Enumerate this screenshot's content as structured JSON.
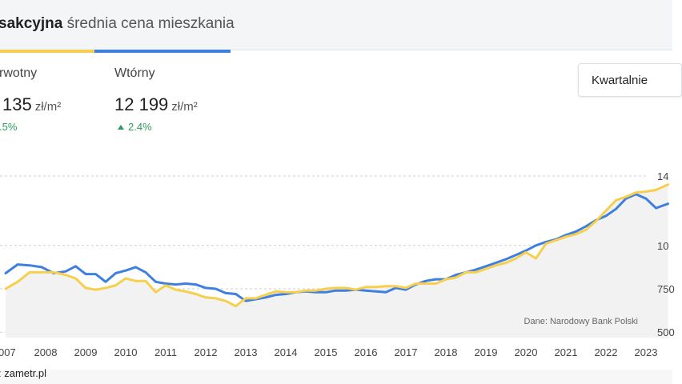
{
  "header": {
    "title_bold": "sakcyjna",
    "title_rest": " średnia cena mieszkania"
  },
  "stats": {
    "primary": {
      "label": "rwotny",
      "value": "135",
      "unit": "zł/m²",
      "change": ".5%"
    },
    "secondary": {
      "label": "Wtórny",
      "value": "12 199",
      "unit": "zł/m²",
      "change": "2.4%"
    }
  },
  "period_select": {
    "value": "Kwartalnie"
  },
  "chart_data": {
    "type": "line",
    "source_note": "Dane: Narodowy Bank Polski",
    "x_ticks": [
      "007",
      "2008",
      "2009",
      "2010",
      "2011",
      "2012",
      "2013",
      "2014",
      "2015",
      "2016",
      "2017",
      "2018",
      "2019",
      "2020",
      "2021",
      "2022",
      "2023"
    ],
    "x_tick_values": [
      2007,
      2008,
      2009,
      2010,
      2011,
      2012,
      2013,
      2014,
      2015,
      2016,
      2017,
      2018,
      2019,
      2020,
      2021,
      2022,
      2023
    ],
    "y_ticks": [
      "14",
      "10",
      "750",
      "500"
    ],
    "y_tick_values": [
      14000,
      10000,
      7500,
      5000
    ],
    "xlim": [
      2007,
      2023.6
    ],
    "ylim": [
      5000,
      14000
    ],
    "grid": true,
    "series": [
      {
        "color": "#3f7fe0",
        "x": [
          2007.0,
          2007.3,
          2007.6,
          2007.9,
          2008.2,
          2008.5,
          2008.75,
          2009.0,
          2009.25,
          2009.5,
          2009.75,
          2010.0,
          2010.25,
          2010.5,
          2010.75,
          2011.0,
          2011.25,
          2011.5,
          2011.75,
          2012.0,
          2012.25,
          2012.5,
          2012.75,
          2013.0,
          2013.25,
          2013.5,
          2013.75,
          2014.0,
          2014.25,
          2014.5,
          2014.75,
          2015.0,
          2015.25,
          2015.5,
          2015.75,
          2016.0,
          2016.25,
          2016.5,
          2016.75,
          2017.0,
          2017.25,
          2017.5,
          2017.75,
          2018.0,
          2018.25,
          2018.5,
          2018.75,
          2019.0,
          2019.25,
          2019.5,
          2019.75,
          2020.0,
          2020.25,
          2020.5,
          2020.75,
          2021.0,
          2021.25,
          2021.5,
          2021.75,
          2022.0,
          2022.25,
          2022.5,
          2022.75,
          2023.0,
          2023.25,
          2023.55
        ],
        "values": [
          8400,
          8900,
          8850,
          8750,
          8400,
          8500,
          8800,
          8350,
          8350,
          7900,
          8400,
          8550,
          8750,
          8450,
          7900,
          7800,
          7750,
          7800,
          7750,
          7550,
          7500,
          7250,
          7200,
          6800,
          6900,
          7000,
          7150,
          7200,
          7300,
          7350,
          7300,
          7300,
          7400,
          7400,
          7450,
          7400,
          7350,
          7300,
          7550,
          7450,
          7750,
          7950,
          8050,
          8050,
          8300,
          8450,
          8600,
          8800,
          9000,
          9200,
          9450,
          9700,
          10000,
          10200,
          10350,
          10600,
          10800,
          11100,
          11450,
          11700,
          12100,
          12700,
          12950,
          12700,
          12150,
          12400
        ]
      },
      {
        "color": "#f5cf4d",
        "x": [
          2007.0,
          2007.3,
          2007.6,
          2007.9,
          2008.2,
          2008.5,
          2008.75,
          2009.0,
          2009.25,
          2009.5,
          2009.75,
          2010.0,
          2010.25,
          2010.5,
          2010.75,
          2011.0,
          2011.25,
          2011.5,
          2011.75,
          2012.0,
          2012.25,
          2012.5,
          2012.75,
          2013.0,
          2013.25,
          2013.5,
          2013.75,
          2014.0,
          2014.25,
          2014.5,
          2014.75,
          2015.0,
          2015.25,
          2015.5,
          2015.75,
          2016.0,
          2016.25,
          2016.5,
          2016.75,
          2017.0,
          2017.25,
          2017.5,
          2017.75,
          2018.0,
          2018.25,
          2018.5,
          2018.75,
          2019.0,
          2019.25,
          2019.5,
          2019.75,
          2020.0,
          2020.25,
          2020.5,
          2020.75,
          2021.0,
          2021.25,
          2021.5,
          2021.75,
          2022.0,
          2022.25,
          2022.5,
          2022.75,
          2023.0,
          2023.25,
          2023.55
        ],
        "values": [
          7500,
          7900,
          8450,
          8450,
          8450,
          8300,
          8100,
          7550,
          7450,
          7550,
          7700,
          8100,
          7950,
          7950,
          7300,
          7700,
          7450,
          7350,
          7200,
          7000,
          6950,
          6800,
          6500,
          6950,
          6950,
          7150,
          7350,
          7300,
          7300,
          7400,
          7400,
          7500,
          7550,
          7550,
          7450,
          7600,
          7600,
          7650,
          7650,
          7550,
          7800,
          7800,
          7800,
          8050,
          8150,
          8450,
          8450,
          8650,
          8850,
          9000,
          9250,
          9600,
          9250,
          10100,
          10300,
          10500,
          10650,
          10900,
          11400,
          12000,
          12600,
          12800,
          13050,
          13100,
          13200,
          13500
        ]
      }
    ]
  },
  "footer": {
    "text": ": zametr.pl"
  }
}
